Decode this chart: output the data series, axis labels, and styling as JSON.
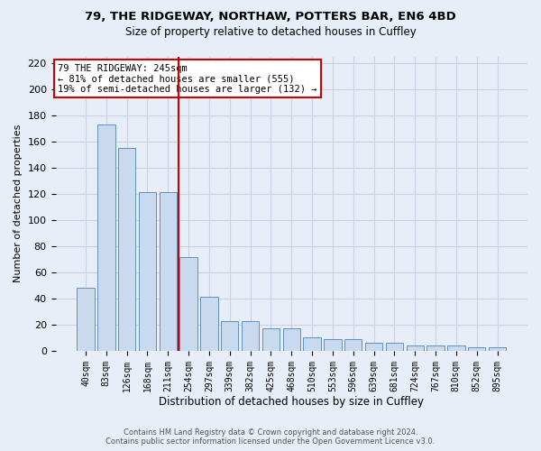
{
  "title": "79, THE RIDGEWAY, NORTHAW, POTTERS BAR, EN6 4BD",
  "subtitle": "Size of property relative to detached houses in Cuffley",
  "xlabel": "Distribution of detached houses by size in Cuffley",
  "ylabel": "Number of detached properties",
  "categories": [
    "40sqm",
    "83sqm",
    "126sqm",
    "168sqm",
    "211sqm",
    "254sqm",
    "297sqm",
    "339sqm",
    "382sqm",
    "425sqm",
    "468sqm",
    "510sqm",
    "553sqm",
    "596sqm",
    "639sqm",
    "681sqm",
    "724sqm",
    "767sqm",
    "810sqm",
    "852sqm",
    "895sqm"
  ],
  "values": [
    48,
    173,
    155,
    121,
    121,
    72,
    41,
    23,
    23,
    17,
    17,
    10,
    9,
    9,
    6,
    6,
    4,
    4,
    4,
    3,
    3
  ],
  "bar_color": "#c9d9ee",
  "bar_edge_color": "#6090c0",
  "grid_color": "#c8d4e4",
  "background_color": "#e8eef8",
  "vline_color": "#cc0000",
  "annotation_lines": [
    "79 THE RIDGEWAY: 245sqm",
    "← 81% of detached houses are smaller (555)",
    "19% of semi-detached houses are larger (132) →"
  ],
  "annotation_box_facecolor": "#ffffff",
  "annotation_box_edgecolor": "#cc0000",
  "footer_line1": "Contains HM Land Registry data © Crown copyright and database right 2024.",
  "footer_line2": "Contains public sector information licensed under the Open Government Licence v3.0.",
  "ylim": [
    0,
    225
  ],
  "yticks": [
    0,
    20,
    40,
    60,
    80,
    100,
    120,
    140,
    160,
    180,
    200,
    220
  ]
}
